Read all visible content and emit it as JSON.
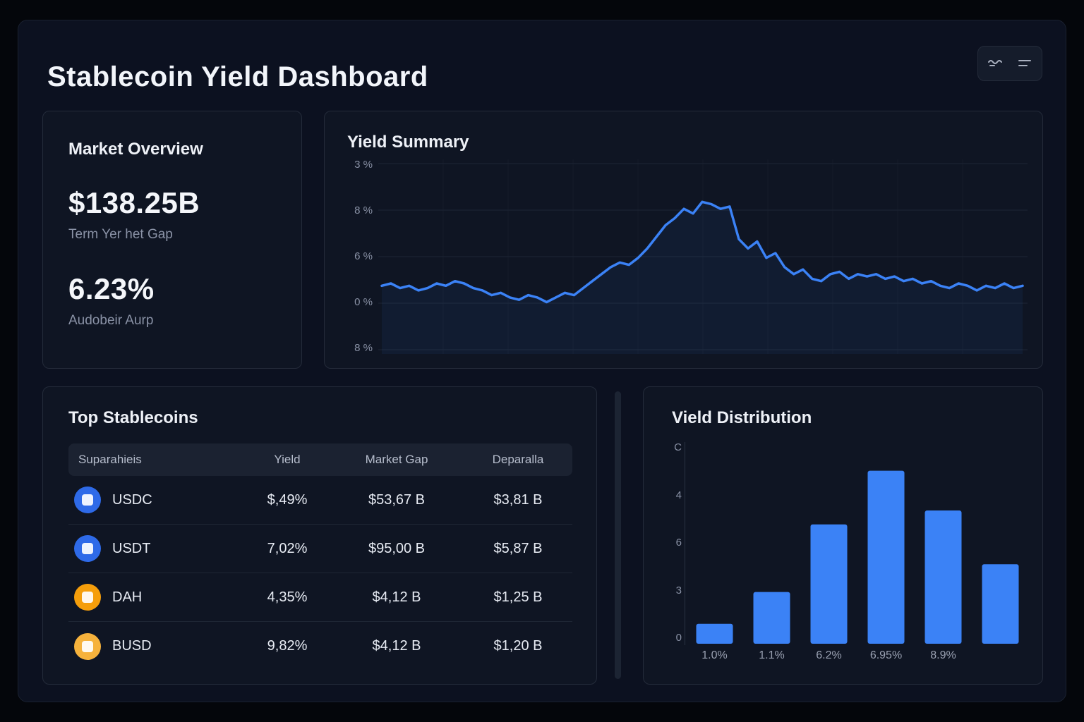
{
  "header": {
    "title": "Stablecoin Yield Dashboard",
    "actions": [
      {
        "icon": "trend-icon"
      },
      {
        "icon": "menu-icon"
      }
    ]
  },
  "market_overview": {
    "title": "Market Overview",
    "market_cap_value": "$138.25B",
    "market_cap_label": "Term Yer het Gap",
    "apy_value": "6.23%",
    "apy_label": "Audobeir Aurp"
  },
  "yield_summary": {
    "title": "Yield Summary"
  },
  "top_stablecoins": {
    "title": "Top Stablecoins",
    "headers": [
      "Suparahieis",
      "Yield",
      "Market Gap",
      "Deparalla"
    ],
    "rows": [
      {
        "icon": "usdc-icon",
        "icon_color": "#2e6ae8",
        "name": "USDC",
        "yield": "$,49%",
        "market_cap": "$53,67 B",
        "col4": "$3,81 B"
      },
      {
        "icon": "usdt-icon",
        "icon_color": "#2e6ae8",
        "name": "USDT",
        "yield": "7,02%",
        "market_cap": "$95,00 B",
        "col4": "$5,87 B"
      },
      {
        "icon": "dai-icon",
        "icon_color": "#f59e0b",
        "name": "DAH",
        "yield": "4,35%",
        "market_cap": "$4,12 B",
        "col4": "$1,25 B"
      },
      {
        "icon": "busd-icon",
        "icon_color": "#f6b23c",
        "name": "BUSD",
        "yield": "9,82%",
        "market_cap": "$4,12 B",
        "col4": "$1,20 B"
      }
    ]
  },
  "yield_distribution": {
    "title": "Vield Distribution"
  },
  "colors": {
    "accent": "#3b82f6",
    "panel": "#0c1120",
    "card": "#0f1523"
  },
  "chart_data": [
    {
      "type": "line",
      "title": "Yield Summary",
      "y_tick_labels": [
        "3 %",
        "8 %",
        "6 %",
        "0 %",
        "8 %"
      ],
      "ylim": [
        2.5,
        10
      ],
      "line_color": "#3b82f6",
      "grid": true,
      "points": [
        5.0,
        5.1,
        4.9,
        5.0,
        4.8,
        4.9,
        5.1,
        5.0,
        5.2,
        5.1,
        4.9,
        4.8,
        4.6,
        4.7,
        4.5,
        4.4,
        4.6,
        4.5,
        4.3,
        4.5,
        4.7,
        4.6,
        4.9,
        5.2,
        5.5,
        5.8,
        6.0,
        5.9,
        6.2,
        6.6,
        7.1,
        7.6,
        7.9,
        8.3,
        8.1,
        8.6,
        8.5,
        8.3,
        8.4,
        7.0,
        6.6,
        6.9,
        6.2,
        6.4,
        5.8,
        5.5,
        5.7,
        5.3,
        5.2,
        5.5,
        5.6,
        5.3,
        5.5,
        5.4,
        5.5,
        5.3,
        5.4,
        5.2,
        5.3,
        5.1,
        5.2,
        5.0,
        4.9,
        5.1,
        5.0,
        4.8,
        5.0,
        4.9,
        5.1,
        4.9,
        5.0
      ]
    },
    {
      "type": "bar",
      "title": "Vield Distribution",
      "y_tick_labels": [
        "C",
        "4",
        "6",
        "3",
        "0"
      ],
      "x_tick_labels": [
        "1.0%",
        "1.1%",
        "6.2%",
        "6.95%",
        "8.9%",
        ""
      ],
      "values": [
        1.0,
        2.6,
        6.0,
        8.7,
        6.7,
        4.0
      ],
      "ylim": [
        0,
        10
      ],
      "bar_color": "#3b82f6",
      "legend": "none"
    }
  ]
}
